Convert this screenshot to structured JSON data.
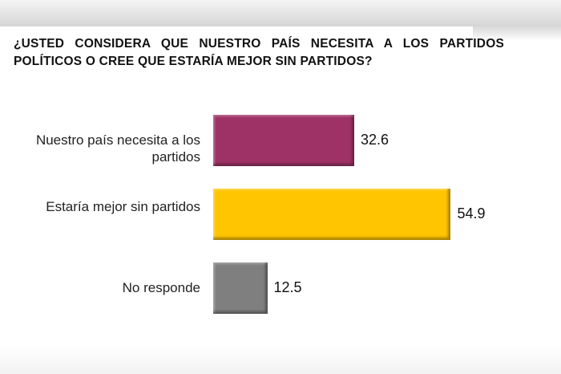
{
  "chart_data": {
    "type": "bar",
    "orientation": "horizontal",
    "title": "¿USTED CONSIDERA QUE NUESTRO PAÍS NECESITA A LOS PARTIDOS POLÍTICOS O CREE QUE ESTARÍA MEJOR SIN PARTIDOS?",
    "categories": [
      "Nuestro país necesita a los partidos",
      "Estaría mejor sin partidos",
      "No responde"
    ],
    "values": [
      32.6,
      54.9,
      12.5
    ],
    "value_labels": [
      "32.6",
      "54.9",
      "12.5"
    ],
    "colors": [
      "#9e3266",
      "#fec500",
      "#7f7f7f"
    ],
    "xlim": [
      0,
      60
    ],
    "grid": false,
    "xlabel": "",
    "ylabel": ""
  }
}
